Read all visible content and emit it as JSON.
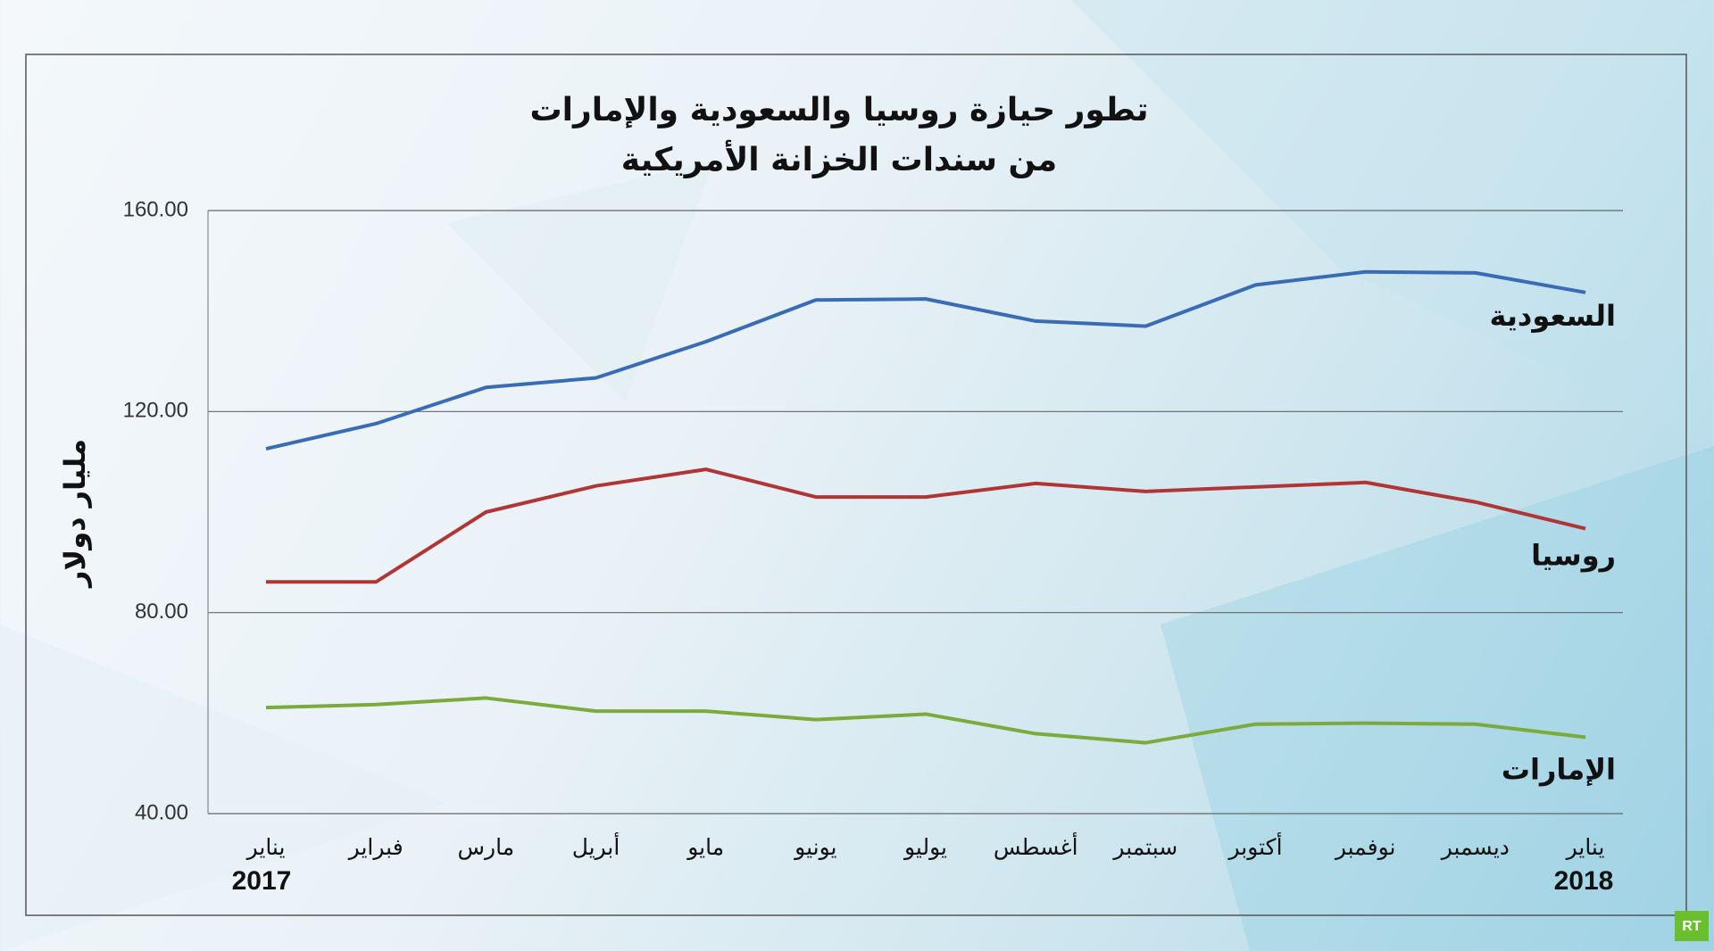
{
  "chart_data": {
    "type": "line",
    "title": "تطور حيازة روسيا والسعودية والإمارات",
    "subtitle": "من سندات الخزانة الأمريكية",
    "y_label": "مليار دولار",
    "categories": [
      "يناير",
      "فبراير",
      "مارس",
      "أبريل",
      "مايو",
      "يونيو",
      "يوليو",
      "أغسطس",
      "سبتمبر",
      "أكتوبر",
      "نوفمبر",
      "ديسمبر",
      "يناير"
    ],
    "year_labels": [
      "2017",
      "2018"
    ],
    "series": [
      {
        "name": "السعودية",
        "color": "#3a6cb6",
        "values": [
          112.6,
          117.6,
          124.8,
          126.7,
          133.9,
          142.2,
          142.4,
          138,
          137,
          145.2,
          147.8,
          147.6,
          143.7
        ]
      },
      {
        "name": "روسيا",
        "color": "#b23535",
        "values": [
          86.1,
          86.1,
          100,
          105.2,
          108.5,
          103,
          103,
          105.7,
          104.1,
          105,
          105.9,
          102,
          96.7
        ]
      },
      {
        "name": "الإمارات",
        "color": "#7bab3c",
        "values": [
          61.1,
          61.7,
          63,
          60.4,
          60.4,
          58.7,
          59.8,
          55.9,
          54.1,
          57.8,
          58,
          57.8,
          55.2
        ]
      }
    ],
    "ylim": [
      40,
      160
    ],
    "yticks": [
      {
        "value": 40,
        "label": "40.00"
      },
      {
        "value": 80,
        "label": "80.00"
      },
      {
        "value": 120,
        "label": "120.00"
      },
      {
        "value": 160,
        "label": "160.00"
      }
    ],
    "grid": true,
    "logo": "RT"
  }
}
